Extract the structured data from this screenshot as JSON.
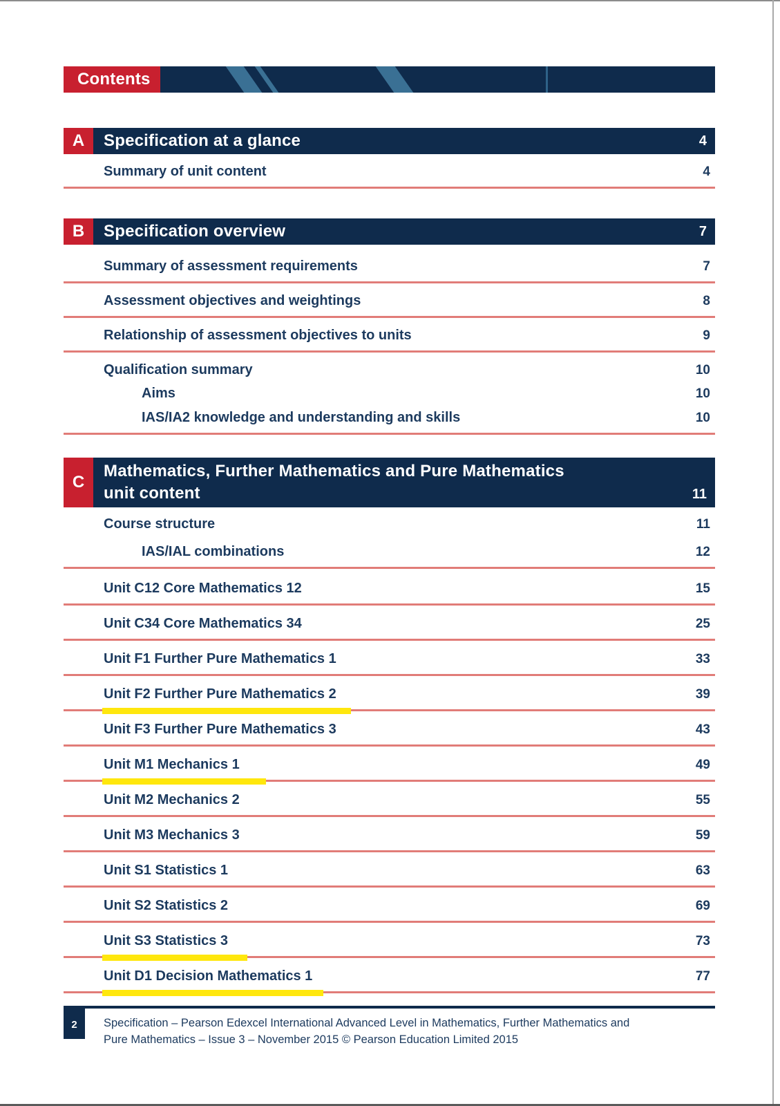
{
  "header": {
    "label": "Contents"
  },
  "sections": [
    {
      "letter": "A",
      "title": "Specification at a glance",
      "page": "4",
      "entries": [
        {
          "label": "Summary of unit content",
          "page": "4"
        }
      ]
    },
    {
      "letter": "B",
      "title": "Specification overview",
      "page": "7",
      "entries": [
        {
          "label": "Summary of assessment requirements",
          "page": "7"
        },
        {
          "label": "Assessment objectives and weightings",
          "page": "8"
        },
        {
          "label": "Relationship of assessment objectives to units",
          "page": "9"
        },
        {
          "label": "Qualification summary",
          "page": "10"
        },
        {
          "label": "Aims",
          "page": "10",
          "sub": true
        },
        {
          "label": "IAS/IA2 knowledge and understanding and skills",
          "page": "10",
          "sub": true
        }
      ]
    },
    {
      "letter": "C",
      "title_line1": "Mathematics, Further Mathematics and Pure Mathematics",
      "title_line2": "unit content",
      "page": "11",
      "entries": [
        {
          "label": "Course structure",
          "page": "11"
        },
        {
          "label": "IAS/IAL combinations",
          "page": "12",
          "sub": true
        },
        {
          "label": "Unit C12 Core Mathematics 12",
          "page": "15"
        },
        {
          "label": "Unit C34 Core Mathematics 34",
          "page": "25"
        },
        {
          "label": "Unit F1 Further Pure Mathematics 1",
          "page": "33"
        },
        {
          "label": "Unit F2 Further Pure Mathematics 2",
          "page": "39",
          "highlighted": true
        },
        {
          "label": "Unit F3 Further Pure Mathematics 3",
          "page": "43"
        },
        {
          "label": "Unit M1 Mechanics 1",
          "page": "49",
          "highlighted": true
        },
        {
          "label": "Unit M2 Mechanics 2",
          "page": "55"
        },
        {
          "label": "Unit M3 Mechanics 3",
          "page": "59"
        },
        {
          "label": "Unit S1 Statistics 1",
          "page": "63"
        },
        {
          "label": "Unit S2 Statistics 2",
          "page": "69"
        },
        {
          "label": "Unit S3 Statistics 3",
          "page": "73",
          "highlighted": true
        },
        {
          "label": "Unit D1 Decision Mathematics 1",
          "page": "77",
          "highlighted": true
        }
      ]
    }
  ],
  "footer": {
    "page_number": "2",
    "text_line1": "Specification – Pearson Edexcel International Advanced Level in Mathematics, Further Mathematics and",
    "text_line2": "Pure Mathematics – Issue 3 – November 2015 © Pearson Education Limited 2015"
  },
  "colors": {
    "navy": "#0f2b4c",
    "red": "#c8202f",
    "stripe_blue": "#3a7094",
    "rule_salmon": "#e17c78",
    "text_navy": "#1c3a5e",
    "highlight_yellow": "#ffe70d"
  }
}
